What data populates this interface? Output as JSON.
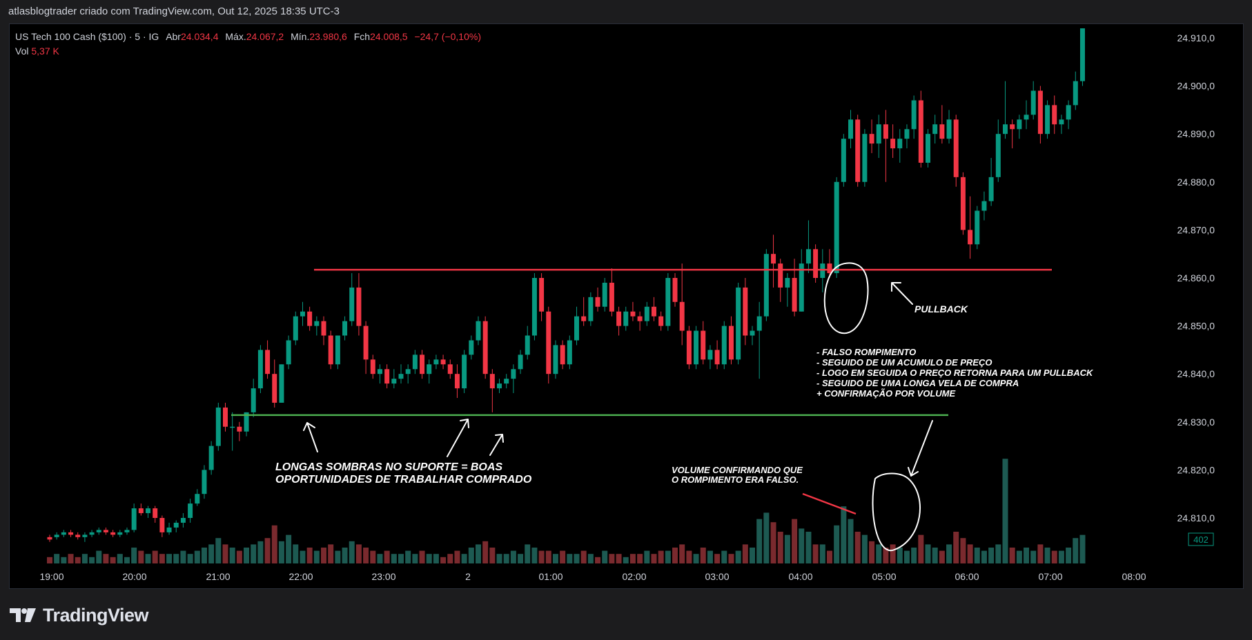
{
  "topbar": {
    "text": "atlasblogtrader criado com TradingView.com, Out 12, 2025 18:35 UTC-3"
  },
  "legend": {
    "symbol": "US Tech 100 Cash ($100) · 5 · IG",
    "open_label": "Abr",
    "open_value": "24.034,4",
    "high_label": "Máx.",
    "high_value": "24.067,2",
    "low_label": "Mín.",
    "low_value": "23.980,6",
    "close_label": "Fch",
    "close_value": "24.008,5",
    "change": "−24,7 (−0,10%)",
    "vol_label": "Vol",
    "vol_value": "5,37 K"
  },
  "footer": {
    "brand": "TradingView"
  },
  "colors": {
    "up": "#089981",
    "down": "#f23645",
    "resistance": "#f23645",
    "support": "#4caf50",
    "background": "#000000"
  },
  "chart_data": {
    "type": "candlestick",
    "price_ticks": [
      "24.910,0",
      "24.900,0",
      "24.890,0",
      "24.880,0",
      "24.870,0",
      "24.860,0",
      "24.850,0",
      "24.840,0",
      "24.830,0",
      "24.820,0",
      "24.810,0"
    ],
    "price_tick_values": [
      24910,
      24900,
      24890,
      24880,
      24870,
      24860,
      24850,
      24840,
      24830,
      24820,
      24810
    ],
    "time_ticks": [
      "19:00",
      "20:00",
      "21:00",
      "22:00",
      "23:00",
      "2",
      "01:00",
      "02:00",
      "03:00",
      "04:00",
      "05:00",
      "06:00",
      "07:00",
      "08:00"
    ],
    "volume_badge": "402",
    "candles": [
      [
        24806,
        24806.5,
        24805,
        24805.5,
        2
      ],
      [
        24806,
        24807,
        24805.5,
        24806.5,
        3
      ],
      [
        24806.5,
        24807.5,
        24806,
        24807,
        2
      ],
      [
        24807,
        24807.5,
        24806,
        24806.5,
        3
      ],
      [
        24806.5,
        24807,
        24805.5,
        24806,
        2
      ],
      [
        24806,
        24807,
        24805,
        24806.5,
        3
      ],
      [
        24806.5,
        24807.5,
        24806,
        24807,
        2
      ],
      [
        24807,
        24808,
        24806.5,
        24807.5,
        4
      ],
      [
        24807.5,
        24808,
        24806.5,
        24807,
        3
      ],
      [
        24807,
        24807.5,
        24806,
        24806.5,
        2
      ],
      [
        24806.5,
        24807.5,
        24806,
        24807,
        3
      ],
      [
        24807,
        24808,
        24806.5,
        24807.5,
        2
      ],
      [
        24807.5,
        24813,
        24807,
        24812,
        5
      ],
      [
        24812,
        24813,
        24810.5,
        24811,
        4
      ],
      [
        24811,
        24812.5,
        24810,
        24812,
        3
      ],
      [
        24812,
        24812.5,
        24809,
        24810,
        4
      ],
      [
        24810,
        24810.5,
        24806,
        24807,
        3
      ],
      [
        24807,
        24809,
        24806.5,
        24808,
        3
      ],
      [
        24808,
        24809.5,
        24807,
        24809,
        3
      ],
      [
        24809,
        24811,
        24808,
        24810,
        4
      ],
      [
        24810,
        24814,
        24809,
        24813,
        3
      ],
      [
        24813,
        24816,
        24812.5,
        24815,
        4
      ],
      [
        24815,
        24821,
        24814,
        24820,
        5
      ],
      [
        24820,
        24826,
        24819,
        24825,
        6
      ],
      [
        24825,
        24834,
        24824,
        24833,
        8
      ],
      [
        24833,
        24834,
        24828,
        24829,
        6
      ],
      [
        24829,
        24832,
        24824,
        24829,
        5
      ],
      [
        24829,
        24830,
        24826,
        24828,
        4
      ],
      [
        24828,
        24832,
        24827,
        24832,
        5
      ],
      [
        24832,
        24839,
        24831,
        24837,
        6
      ],
      [
        24837,
        24846,
        24836,
        24845,
        7
      ],
      [
        24845,
        24847,
        24839,
        24840,
        8
      ],
      [
        24840,
        24843,
        24833,
        24834,
        12
      ],
      [
        24834,
        24842,
        24834,
        24842,
        7
      ],
      [
        24842,
        24848,
        24841,
        24847,
        9
      ],
      [
        24847,
        24853,
        24846,
        24852,
        6
      ],
      [
        24852,
        24855,
        24850,
        24853,
        4
      ],
      [
        24853,
        24854,
        24849,
        24850,
        5
      ],
      [
        24850,
        24852,
        24848,
        24851,
        4
      ],
      [
        24851,
        24852,
        24846,
        24848,
        5
      ],
      [
        24848,
        24849,
        24841,
        24842,
        6
      ],
      [
        24842,
        24848,
        24841,
        24848,
        4
      ],
      [
        24848,
        24852,
        24847,
        24851,
        5
      ],
      [
        24851,
        24861,
        24850,
        24858,
        7
      ],
      [
        24858,
        24861,
        24848,
        24850,
        6
      ],
      [
        24850,
        24851,
        24840,
        24843,
        5
      ],
      [
        24843,
        24844,
        24839,
        24840,
        4
      ],
      [
        24840,
        24842,
        24838,
        24841,
        3
      ],
      [
        24841,
        24842,
        24837,
        24838,
        4
      ],
      [
        24838,
        24841,
        24837,
        24839,
        3
      ],
      [
        24839,
        24842,
        24838,
        24840,
        3
      ],
      [
        24840,
        24842,
        24838,
        24841,
        4
      ],
      [
        24841,
        24845,
        24840,
        24844,
        3
      ],
      [
        24844,
        24845,
        24839,
        24840,
        4
      ],
      [
        24840,
        24843,
        24838,
        24842,
        3
      ],
      [
        24842,
        24844,
        24841,
        24843,
        3
      ],
      [
        24843,
        24844,
        24841,
        24842,
        2
      ],
      [
        24842,
        24843,
        24839,
        24840,
        3
      ],
      [
        24840,
        24842,
        24835,
        24837,
        4
      ],
      [
        24837,
        24845,
        24836,
        24844,
        3
      ],
      [
        24844,
        24848,
        24843,
        24847,
        5
      ],
      [
        24847,
        24852,
        24846,
        24851,
        6
      ],
      [
        24851,
        24852,
        24839,
        24840,
        7
      ],
      [
        24840,
        24841,
        24832,
        24837,
        5
      ],
      [
        24837,
        24839,
        24836,
        24838,
        3
      ],
      [
        24838,
        24840,
        24837,
        24839,
        3
      ],
      [
        24839,
        24842,
        24836,
        24841,
        4
      ],
      [
        24841,
        24845,
        24840,
        24844,
        3
      ],
      [
        24844,
        24850,
        24843,
        24848,
        6
      ],
      [
        24848,
        24861,
        24847,
        24860,
        5
      ],
      [
        24860,
        24861,
        24851,
        24853,
        4
      ],
      [
        24853,
        24854,
        24838,
        24840,
        4
      ],
      [
        24840,
        24847,
        24839,
        24846,
        3
      ],
      [
        24846,
        24847,
        24841,
        24842,
        4
      ],
      [
        24842,
        24848,
        24841,
        24847,
        3
      ],
      [
        24847,
        24854,
        24846,
        24852,
        3
      ],
      [
        24852,
        24856,
        24850,
        24851,
        4
      ],
      [
        24851,
        24857,
        24850,
        24856,
        3
      ],
      [
        24856,
        24858,
        24853,
        24854,
        2
      ],
      [
        24854,
        24860,
        24853,
        24859,
        4
      ],
      [
        24859,
        24862,
        24852,
        24853,
        3
      ],
      [
        24853,
        24854,
        24848,
        24850,
        3
      ],
      [
        24850,
        24854,
        24849,
        24853,
        2
      ],
      [
        24853,
        24855,
        24851,
        24852,
        3
      ],
      [
        24852,
        24853,
        24849,
        24851,
        3
      ],
      [
        24851,
        24855,
        24850,
        24854,
        4
      ],
      [
        24854,
        24856,
        24851,
        24852,
        3
      ],
      [
        24852,
        24853,
        24849,
        24850,
        4
      ],
      [
        24850,
        24861,
        24849,
        24860,
        4
      ],
      [
        24860,
        24861,
        24854,
        24855,
        5
      ],
      [
        24855,
        24863,
        24846,
        24849,
        6
      ],
      [
        24849,
        24850,
        24841,
        24842,
        4
      ],
      [
        24842,
        24850,
        24841,
        24849,
        3
      ],
      [
        24849,
        24851,
        24842,
        24843,
        5
      ],
      [
        24843,
        24846,
        24841,
        24845,
        4
      ],
      [
        24845,
        24847,
        24841,
        24842,
        3
      ],
      [
        24842,
        24851,
        24841,
        24850,
        4
      ],
      [
        24850,
        24852,
        24842,
        24843,
        3
      ],
      [
        24843,
        24859,
        24842,
        24858,
        4
      ],
      [
        24858,
        24860,
        24846,
        24848,
        6
      ],
      [
        24848,
        24850,
        24846,
        24849,
        5
      ],
      [
        24849,
        24855,
        24839,
        24852,
        14
      ],
      [
        24852,
        24866,
        24851,
        24865,
        16
      ],
      [
        24865,
        24869,
        24858,
        24863,
        13
      ],
      [
        24863,
        24864,
        24855,
        24858,
        10
      ],
      [
        24858,
        24861,
        24854,
        24860,
        9
      ],
      [
        24860,
        24864,
        24852,
        24853,
        14
      ],
      [
        24853,
        24866,
        24853,
        24863,
        11
      ],
      [
        24863,
        24872,
        24861,
        24866,
        10
      ],
      [
        24866,
        24867,
        24859,
        24860,
        6
      ],
      [
        24860,
        24866,
        24857,
        24863,
        6
      ],
      [
        24863,
        24866,
        24860,
        24861,
        4
      ],
      [
        24861,
        24881,
        24860,
        24880,
        12
      ],
      [
        24880,
        24890,
        24879,
        24889,
        18
      ],
      [
        24889,
        24895,
        24887,
        24893,
        14
      ],
      [
        24893,
        24894,
        24879,
        24880,
        10
      ],
      [
        24880,
        24891,
        24879,
        24890,
        9
      ],
      [
        24890,
        24893,
        24886,
        24888,
        7
      ],
      [
        24888,
        24894,
        24885,
        24892,
        6
      ],
      [
        24892,
        24895,
        24880,
        24889,
        5
      ],
      [
        24889,
        24892,
        24885,
        24887,
        6
      ],
      [
        24887,
        24891,
        24884,
        24889,
        5
      ],
      [
        24889,
        24892,
        24887,
        24891,
        4
      ],
      [
        24891,
        24898,
        24889,
        24897,
        5
      ],
      [
        24897,
        24899,
        24883,
        24884,
        9
      ],
      [
        24884,
        24891,
        24883,
        24890,
        6
      ],
      [
        24890,
        24894,
        24888,
        24892,
        5
      ],
      [
        24892,
        24896,
        24888,
        24889,
        4
      ],
      [
        24889,
        24895,
        24888,
        24893,
        6
      ],
      [
        24893,
        24894,
        24879,
        24881,
        10
      ],
      [
        24881,
        24882,
        24869,
        24870,
        8
      ],
      [
        24870,
        24877,
        24864,
        24867,
        6
      ],
      [
        24867,
        24875,
        24866,
        24874,
        5
      ],
      [
        24874,
        24878,
        24872,
        24876,
        4
      ],
      [
        24876,
        24885,
        24875,
        24881,
        5
      ],
      [
        24881,
        24893,
        24880,
        24890,
        6
      ],
      [
        24890,
        24901,
        24889,
        24892,
        33
      ],
      [
        24892,
        24893,
        24887,
        24891,
        5
      ],
      [
        24891,
        24894,
        24889,
        24893,
        4
      ],
      [
        24893,
        24897,
        24891,
        24894,
        5
      ],
      [
        24894,
        24901,
        24893,
        24899,
        4
      ],
      [
        24899,
        24900,
        24888,
        24890,
        6
      ],
      [
        24890,
        24897,
        24889,
        24896,
        5
      ],
      [
        24896,
        24898,
        24890,
        24892,
        4
      ],
      [
        24892,
        24894,
        24890,
        24893,
        4
      ],
      [
        24893,
        24897,
        24891,
        24896,
        5
      ],
      [
        24896,
        24903,
        24895,
        24901,
        8
      ],
      [
        24901,
        24912,
        24900,
        24912,
        9
      ]
    ],
    "resistance_line": 24862,
    "support_line": 24832,
    "annotations": [
      "LONGAS SOMBRAS NO SUPORTE = BOAS",
      "OPORTUNIDADES DE TRABALHAR COMPRADO",
      "VOLUME CONFIRMANDO QUE",
      "O ROMPIMENTO ERA FALSO.",
      "PULLBACK",
      "- FALSO ROMPIMENTO",
      "- SEGUIDO DE UM ACUMULO DE PREÇO",
      "- LOGO EM SEGUIDA O PREÇO RETORNA PARA UM PULLBACK",
      "- SEGUIDO DE  UMA LONGA VELA DE COMPRA",
      "+ CONFIRMAÇÃO POR VOLUME"
    ]
  }
}
